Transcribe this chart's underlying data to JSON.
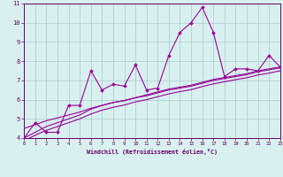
{
  "x": [
    0,
    1,
    2,
    3,
    4,
    5,
    6,
    7,
    8,
    9,
    10,
    11,
    12,
    13,
    14,
    15,
    16,
    17,
    18,
    19,
    20,
    21,
    22,
    23
  ],
  "y_main": [
    4.0,
    4.8,
    4.3,
    4.3,
    5.7,
    5.7,
    7.5,
    6.5,
    6.8,
    6.7,
    7.8,
    6.5,
    6.6,
    8.3,
    9.5,
    10.0,
    10.8,
    9.5,
    7.2,
    7.6,
    7.6,
    7.5,
    8.3,
    7.7
  ],
  "y_trend1": [
    4.0,
    4.3,
    4.6,
    4.8,
    5.0,
    5.2,
    5.5,
    5.7,
    5.85,
    5.95,
    6.1,
    6.2,
    6.35,
    6.5,
    6.6,
    6.7,
    6.85,
    7.0,
    7.1,
    7.2,
    7.3,
    7.45,
    7.55,
    7.65
  ],
  "y_trend2": [
    4.5,
    4.7,
    4.9,
    5.05,
    5.2,
    5.35,
    5.55,
    5.7,
    5.85,
    5.95,
    6.1,
    6.25,
    6.4,
    6.55,
    6.65,
    6.75,
    6.9,
    7.05,
    7.15,
    7.25,
    7.35,
    7.5,
    7.6,
    7.7
  ],
  "y_trend3": [
    3.85,
    4.15,
    4.4,
    4.6,
    4.8,
    5.0,
    5.25,
    5.45,
    5.6,
    5.72,
    5.88,
    6.0,
    6.15,
    6.3,
    6.42,
    6.52,
    6.68,
    6.82,
    6.93,
    7.04,
    7.14,
    7.28,
    7.38,
    7.5
  ],
  "line_color": "#990099",
  "bg_color": "#d8f0f0",
  "grid_color": "#aacccc",
  "xlabel": "Windchill (Refroidissement éolien,°C)",
  "xlim": [
    0,
    23
  ],
  "ylim": [
    4,
    11
  ],
  "yticks": [
    4,
    5,
    6,
    7,
    8,
    9,
    10,
    11
  ],
  "xticks": [
    0,
    1,
    2,
    3,
    4,
    5,
    6,
    7,
    8,
    9,
    10,
    11,
    12,
    13,
    14,
    15,
    16,
    17,
    18,
    19,
    20,
    21,
    22,
    23
  ]
}
